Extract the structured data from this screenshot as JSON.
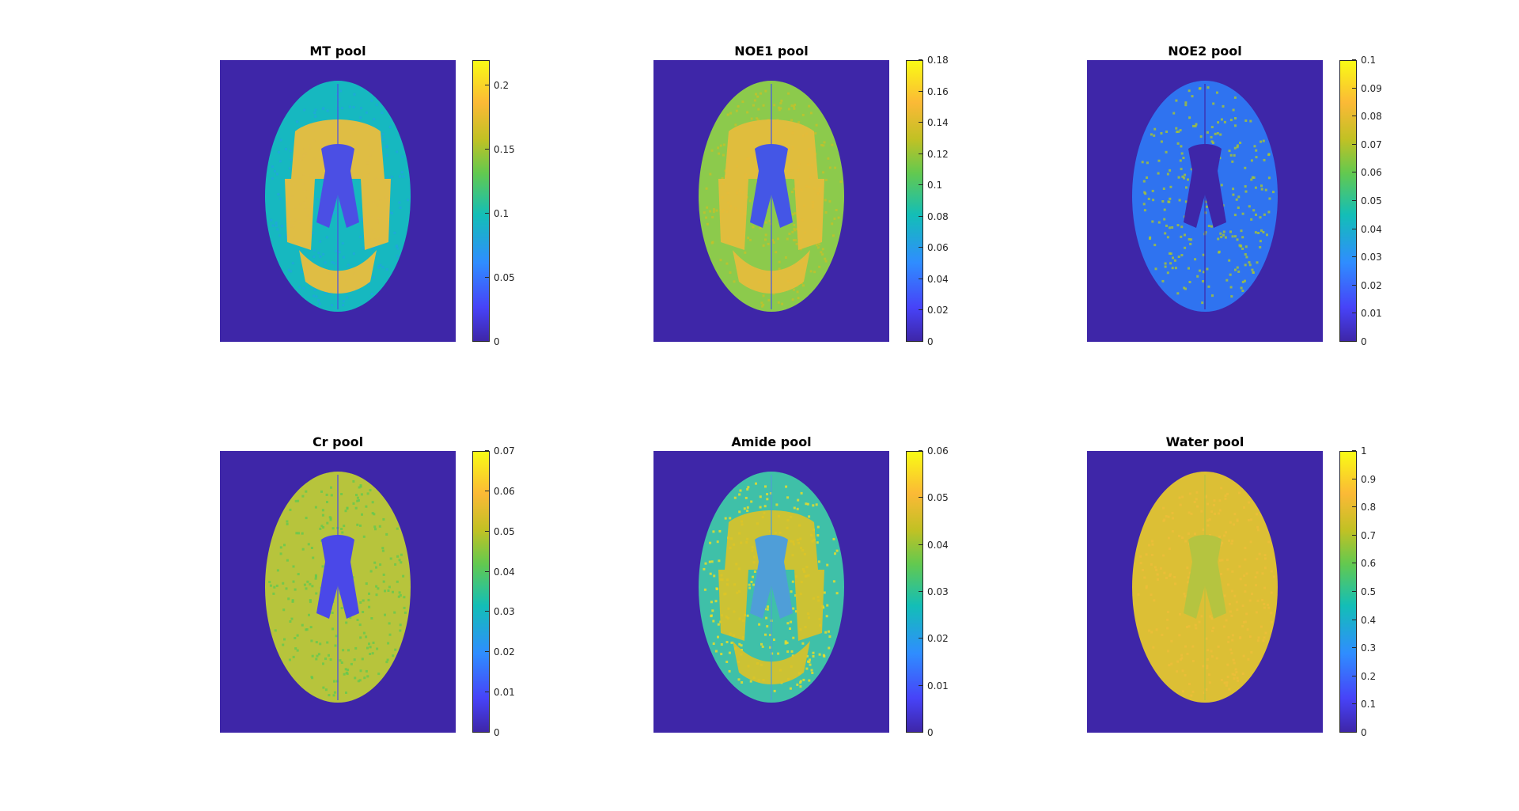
{
  "figure": {
    "colormap": "parula",
    "background_color": "#3e26a8",
    "panels": [
      {
        "title": "MT pool",
        "cmax": 0.22,
        "ticks": [
          "0",
          "0.05",
          "0.1",
          "0.15",
          "0.2"
        ],
        "tick_values": [
          0,
          0.05,
          0.1,
          0.15,
          0.2
        ],
        "variant": "mt"
      },
      {
        "title": "NOE1 pool",
        "cmax": 0.18,
        "ticks": [
          "0",
          "0.02",
          "0.04",
          "0.06",
          "0.08",
          "0.1",
          "0.12",
          "0.14",
          "0.16",
          "0.18"
        ],
        "tick_values": [
          0,
          0.02,
          0.04,
          0.06,
          0.08,
          0.1,
          0.12,
          0.14,
          0.16,
          0.18
        ],
        "variant": "noe1"
      },
      {
        "title": "NOE2 pool",
        "cmax": 0.1,
        "ticks": [
          "0",
          "0.01",
          "0.02",
          "0.03",
          "0.04",
          "0.05",
          "0.06",
          "0.07",
          "0.08",
          "0.09",
          "0.1"
        ],
        "tick_values": [
          0,
          0.01,
          0.02,
          0.03,
          0.04,
          0.05,
          0.06,
          0.07,
          0.08,
          0.09,
          0.1
        ],
        "variant": "noe2"
      },
      {
        "title": "Cr pool",
        "cmax": 0.07,
        "ticks": [
          "0",
          "0.01",
          "0.02",
          "0.03",
          "0.04",
          "0.05",
          "0.06",
          "0.07"
        ],
        "tick_values": [
          0,
          0.01,
          0.02,
          0.03,
          0.04,
          0.05,
          0.06,
          0.07
        ],
        "variant": "cr"
      },
      {
        "title": "Amide pool",
        "cmax": 0.06,
        "ticks": [
          "0",
          "0.01",
          "0.02",
          "0.03",
          "0.04",
          "0.05",
          "0.06"
        ],
        "tick_values": [
          0,
          0.01,
          0.02,
          0.03,
          0.04,
          0.05,
          0.06
        ],
        "variant": "amide"
      },
      {
        "title": "Water pool",
        "cmax": 1,
        "ticks": [
          "0",
          "0.1",
          "0.2",
          "0.3",
          "0.4",
          "0.5",
          "0.6",
          "0.7",
          "0.8",
          "0.9",
          "1"
        ],
        "tick_values": [
          0,
          0.1,
          0.2,
          0.3,
          0.4,
          0.5,
          0.6,
          0.7,
          0.8,
          0.9,
          1
        ],
        "variant": "water"
      }
    ]
  }
}
